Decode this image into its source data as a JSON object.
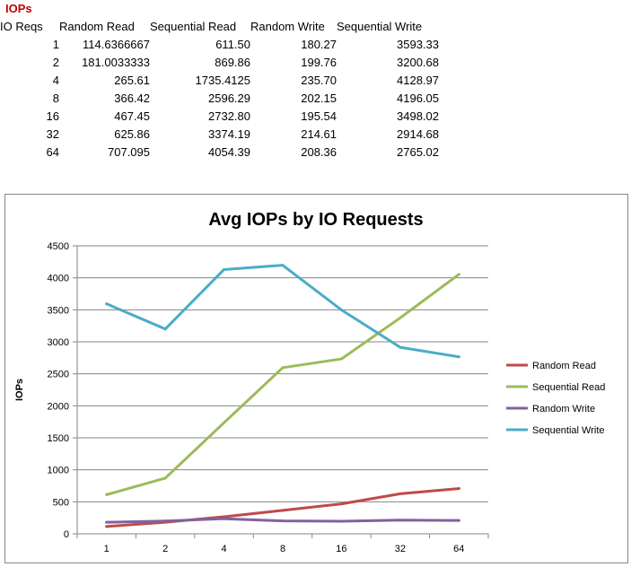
{
  "sheet": {
    "title": "IOPs",
    "headers": [
      "IO Reqs",
      "Random Read",
      "Sequential Read",
      "Random Write",
      "Sequential Write"
    ],
    "rows": [
      [
        "1",
        "114.6366667",
        "611.50",
        "180.27",
        "3593.33"
      ],
      [
        "2",
        "181.0033333",
        "869.86",
        "199.76",
        "3200.68"
      ],
      [
        "4",
        "265.61",
        "1735.4125",
        "235.70",
        "4128.97"
      ],
      [
        "8",
        "366.42",
        "2596.29",
        "202.15",
        "4196.05"
      ],
      [
        "16",
        "467.45",
        "2732.80",
        "195.54",
        "3498.02"
      ],
      [
        "32",
        "625.86",
        "3374.19",
        "214.61",
        "2914.68"
      ],
      [
        "64",
        "707.095",
        "4054.39",
        "208.36",
        "2765.02"
      ]
    ]
  },
  "chart_data": {
    "type": "line",
    "title": "Avg IOPs by IO Requests",
    "xlabel": "",
    "ylabel": "IOPs",
    "categories": [
      "1",
      "2",
      "4",
      "8",
      "16",
      "32",
      "64"
    ],
    "ylim": [
      0,
      4500
    ],
    "yticks": [
      0,
      500,
      1000,
      1500,
      2000,
      2500,
      3000,
      3500,
      4000,
      4500
    ],
    "grid": true,
    "legend_position": "right",
    "series": [
      {
        "name": "Random Read",
        "color": "#be4b48",
        "values": [
          114.64,
          181.0,
          265.61,
          366.42,
          467.45,
          625.86,
          707.1
        ]
      },
      {
        "name": "Sequential Read",
        "color": "#9bbb59",
        "values": [
          611.5,
          869.86,
          1735.41,
          2596.29,
          2732.8,
          3374.19,
          4054.39
        ]
      },
      {
        "name": "Random Write",
        "color": "#7f62a1",
        "values": [
          180.27,
          199.76,
          235.7,
          202.15,
          195.54,
          214.61,
          208.36
        ]
      },
      {
        "name": "Sequential Write",
        "color": "#4bacc6",
        "values": [
          3593.33,
          3200.68,
          4128.97,
          4196.05,
          3498.02,
          2914.68,
          2765.02
        ]
      }
    ]
  }
}
